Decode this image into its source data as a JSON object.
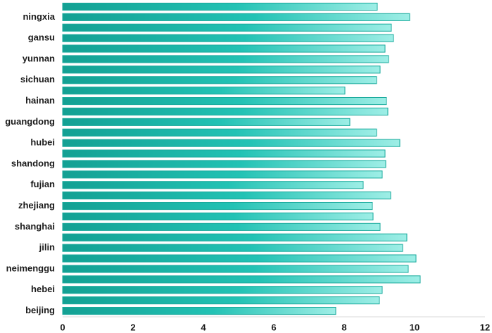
{
  "chart_data": {
    "type": "barh",
    "categories": [
      null,
      "ningxia",
      null,
      "gansu",
      null,
      "yunnan",
      null,
      "sichuan",
      null,
      "hainan",
      null,
      "guangdong",
      null,
      "hubei",
      null,
      "shandong",
      null,
      "fujian",
      null,
      "zhejiang",
      null,
      "shanghai",
      null,
      "jilin",
      null,
      "neimenggu",
      null,
      "hebei",
      null,
      "beijing"
    ],
    "values": [
      8.94,
      9.86,
      9.34,
      9.4,
      9.16,
      9.26,
      9.02,
      8.92,
      8.02,
      9.2,
      9.24,
      8.16,
      8.92,
      9.58,
      9.16,
      9.18,
      9.08,
      8.54,
      9.32,
      8.8,
      8.82,
      9.02,
      9.78,
      9.66,
      10.04,
      9.82,
      10.16,
      9.08,
      9.0,
      7.76
    ],
    "color": "#1aaa9c",
    "xlim": [
      0,
      12
    ],
    "xticks": [
      0,
      2,
      4,
      6,
      8,
      10,
      12
    ],
    "grid": false
  }
}
